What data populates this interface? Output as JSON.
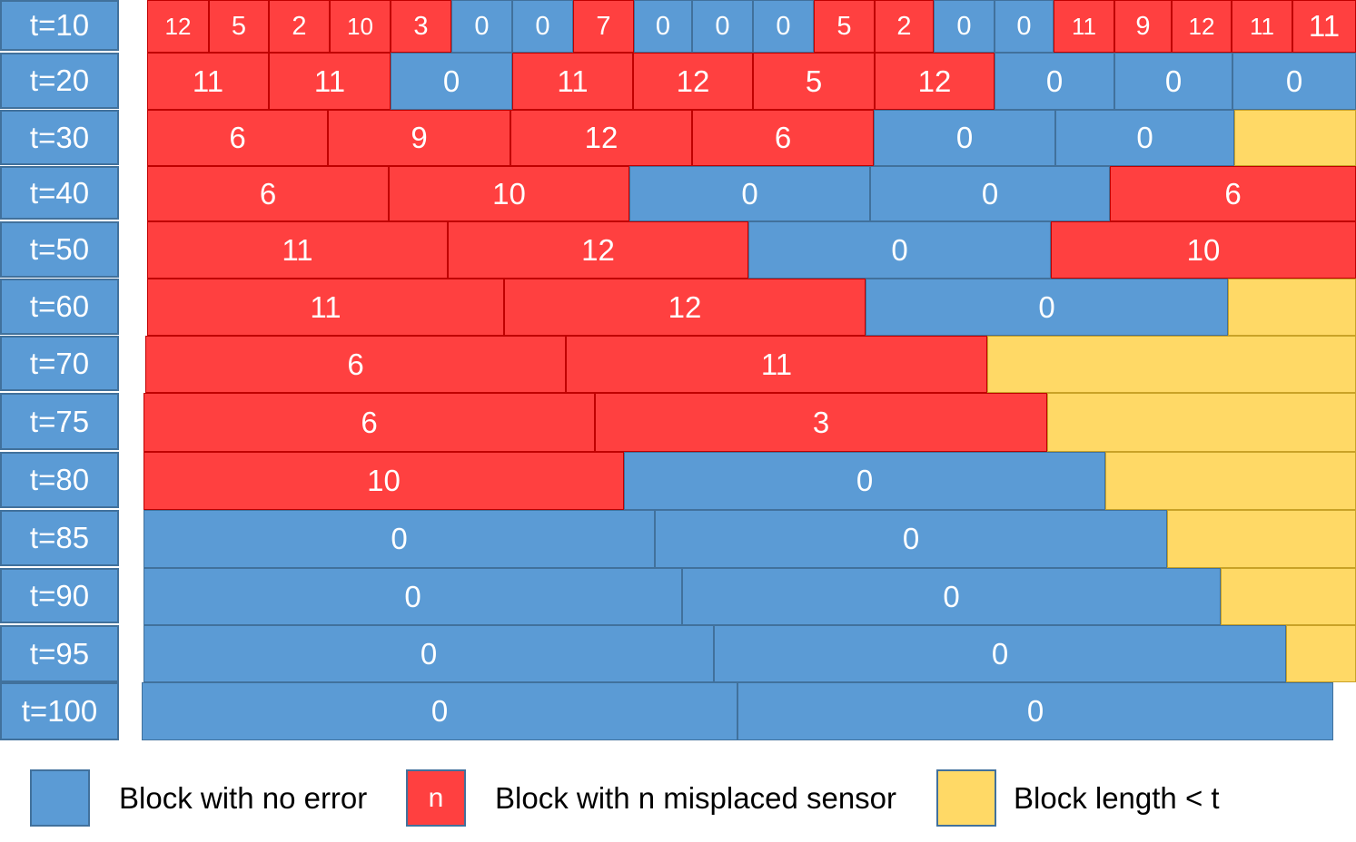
{
  "colors": {
    "no_error": "#5b9bd5",
    "no_error_border": "#41719c",
    "misplaced": "#ff4040",
    "misplaced_border": "#c00000",
    "short_block": "#ffd966",
    "short_block_border": "#c9a227"
  },
  "rows": [
    {
      "label": "t=10",
      "blocks": [
        {
          "kind": "error",
          "value": "12"
        },
        {
          "kind": "error",
          "value": "5"
        },
        {
          "kind": "error",
          "value": "2"
        },
        {
          "kind": "error",
          "value": "10"
        },
        {
          "kind": "error",
          "value": "3"
        },
        {
          "kind": "ok",
          "value": "0"
        },
        {
          "kind": "ok",
          "value": "0"
        },
        {
          "kind": "error",
          "value": "7"
        },
        {
          "kind": "ok",
          "value": "0"
        },
        {
          "kind": "ok",
          "value": "0"
        },
        {
          "kind": "ok",
          "value": "0"
        },
        {
          "kind": "error",
          "value": "5"
        },
        {
          "kind": "error",
          "value": "2"
        },
        {
          "kind": "ok",
          "value": "0"
        },
        {
          "kind": "ok",
          "value": "0"
        },
        {
          "kind": "error",
          "value": "11"
        },
        {
          "kind": "error",
          "value": "9"
        },
        {
          "kind": "error",
          "value": "12"
        },
        {
          "kind": "error",
          "value": "11"
        },
        {
          "kind": "error",
          "value": "11"
        }
      ]
    },
    {
      "label": "t=20",
      "blocks": [
        {
          "kind": "error",
          "value": "11"
        },
        {
          "kind": "error",
          "value": "11"
        },
        {
          "kind": "ok",
          "value": "0"
        },
        {
          "kind": "error",
          "value": "11"
        },
        {
          "kind": "error",
          "value": "12"
        },
        {
          "kind": "error",
          "value": "5"
        },
        {
          "kind": "error",
          "value": "12"
        },
        {
          "kind": "ok",
          "value": "0"
        },
        {
          "kind": "ok",
          "value": "0"
        },
        {
          "kind": "ok",
          "value": "0"
        }
      ]
    },
    {
      "label": "t=30",
      "blocks": [
        {
          "kind": "error",
          "value": "6"
        },
        {
          "kind": "error",
          "value": "9"
        },
        {
          "kind": "error",
          "value": "12"
        },
        {
          "kind": "error",
          "value": "6"
        },
        {
          "kind": "ok",
          "value": "0"
        },
        {
          "kind": "ok",
          "value": "0"
        },
        {
          "kind": "short",
          "value": ""
        }
      ]
    },
    {
      "label": "t=40",
      "blocks": [
        {
          "kind": "error",
          "value": "6"
        },
        {
          "kind": "error",
          "value": "10"
        },
        {
          "kind": "ok",
          "value": "0"
        },
        {
          "kind": "ok",
          "value": "0"
        },
        {
          "kind": "error",
          "value": "6"
        }
      ]
    },
    {
      "label": "t=50",
      "blocks": [
        {
          "kind": "error",
          "value": "11"
        },
        {
          "kind": "error",
          "value": "12"
        },
        {
          "kind": "ok",
          "value": "0"
        },
        {
          "kind": "error",
          "value": "10"
        }
      ]
    },
    {
      "label": "t=60",
      "blocks": [
        {
          "kind": "error",
          "value": "11"
        },
        {
          "kind": "error",
          "value": "12"
        },
        {
          "kind": "ok",
          "value": "0"
        },
        {
          "kind": "short",
          "value": ""
        }
      ]
    },
    {
      "label": "t=70",
      "blocks": [
        {
          "kind": "error",
          "value": "6"
        },
        {
          "kind": "error",
          "value": "11"
        },
        {
          "kind": "short",
          "value": ""
        }
      ]
    },
    {
      "label": "t=75",
      "blocks": [
        {
          "kind": "error",
          "value": "6"
        },
        {
          "kind": "error",
          "value": "3"
        },
        {
          "kind": "short",
          "value": ""
        }
      ]
    },
    {
      "label": "t=80",
      "blocks": [
        {
          "kind": "error",
          "value": "10"
        },
        {
          "kind": "ok",
          "value": "0"
        },
        {
          "kind": "short",
          "value": ""
        }
      ]
    },
    {
      "label": "t=85",
      "blocks": [
        {
          "kind": "ok",
          "value": "0"
        },
        {
          "kind": "ok",
          "value": "0"
        },
        {
          "kind": "short",
          "value": ""
        }
      ]
    },
    {
      "label": "t=90",
      "blocks": [
        {
          "kind": "ok",
          "value": "0"
        },
        {
          "kind": "ok",
          "value": "0"
        },
        {
          "kind": "short",
          "value": ""
        }
      ]
    },
    {
      "label": "t=95",
      "blocks": [
        {
          "kind": "ok",
          "value": "0"
        },
        {
          "kind": "ok",
          "value": "0"
        },
        {
          "kind": "short",
          "value": ""
        }
      ]
    },
    {
      "label": "t=100",
      "blocks": [
        {
          "kind": "ok",
          "value": "0"
        },
        {
          "kind": "ok",
          "value": "0"
        }
      ]
    }
  ],
  "legend": {
    "no_error_label": "Block with no error",
    "misplaced_symbol": "n",
    "misplaced_label": "Block with n misplaced sensor",
    "short_label": "Block length < t"
  }
}
